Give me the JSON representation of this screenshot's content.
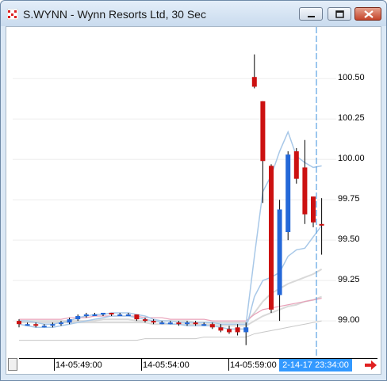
{
  "window": {
    "title": "S.WYNN - Wynn Resorts Ltd, 30 Sec",
    "minimize_icon": "minimize-icon",
    "maximize_icon": "maximize-icon",
    "close_icon": "close-icon"
  },
  "chart_data": {
    "type": "candlestick",
    "title": "S.WYNN - Wynn Resorts Ltd, 30 Sec",
    "price_ticks": [
      "100.50",
      "100.25",
      "100.00",
      "99.75",
      "99.50",
      "99.25",
      "99.00"
    ],
    "price_range": [
      98.78,
      100.82
    ],
    "time_ticks": [
      "14-05:49:00",
      "14-05:54:00",
      "14-05:59:00"
    ],
    "cursor_time": "2-14-17 23:34:00",
    "colors": {
      "up": "#2468d8",
      "down": "#cc1111",
      "ma_blue": "#a8c8e8",
      "ma_gray": "#d9d9d9",
      "ma_pink": "#e8a0b8",
      "cursor": "#3a8fdc"
    },
    "candles": [
      {
        "o": 99.0,
        "h": 99.01,
        "l": 98.96,
        "c": 98.98
      },
      {
        "o": 98.98,
        "h": 98.99,
        "l": 98.97,
        "c": 98.98
      },
      {
        "o": 98.98,
        "h": 98.99,
        "l": 98.96,
        "c": 98.97
      },
      {
        "o": 98.97,
        "h": 98.98,
        "l": 98.96,
        "c": 98.97
      },
      {
        "o": 98.97,
        "h": 98.99,
        "l": 98.96,
        "c": 98.98
      },
      {
        "o": 98.98,
        "h": 99.0,
        "l": 98.97,
        "c": 98.99
      },
      {
        "o": 98.99,
        "h": 99.02,
        "l": 98.98,
        "c": 99.01
      },
      {
        "o": 99.01,
        "h": 99.04,
        "l": 99.0,
        "c": 99.03
      },
      {
        "o": 99.03,
        "h": 99.05,
        "l": 99.02,
        "c": 99.04
      },
      {
        "o": 99.04,
        "h": 99.05,
        "l": 99.03,
        "c": 99.04
      },
      {
        "o": 99.04,
        "h": 99.05,
        "l": 99.03,
        "c": 99.05
      },
      {
        "o": 99.05,
        "h": 99.05,
        "l": 99.03,
        "c": 99.04
      },
      {
        "o": 99.04,
        "h": 99.05,
        "l": 99.03,
        "c": 99.04
      },
      {
        "o": 99.04,
        "h": 99.05,
        "l": 99.03,
        "c": 99.04
      },
      {
        "o": 99.04,
        "h": 99.04,
        "l": 99.0,
        "c": 99.01
      },
      {
        "o": 99.01,
        "h": 99.02,
        "l": 98.99,
        "c": 99.0
      },
      {
        "o": 99.0,
        "h": 99.01,
        "l": 98.98,
        "c": 98.99
      },
      {
        "o": 98.99,
        "h": 99.0,
        "l": 98.98,
        "c": 98.99
      },
      {
        "o": 98.99,
        "h": 99.0,
        "l": 98.98,
        "c": 98.99
      },
      {
        "o": 98.99,
        "h": 99.0,
        "l": 98.97,
        "c": 98.98
      },
      {
        "o": 98.98,
        "h": 99.0,
        "l": 98.97,
        "c": 98.99
      },
      {
        "o": 98.99,
        "h": 99.0,
        "l": 98.97,
        "c": 98.98
      },
      {
        "o": 98.98,
        "h": 98.99,
        "l": 98.97,
        "c": 98.98
      },
      {
        "o": 98.98,
        "h": 98.99,
        "l": 98.95,
        "c": 98.96
      },
      {
        "o": 98.96,
        "h": 98.98,
        "l": 98.93,
        "c": 98.94
      },
      {
        "o": 98.95,
        "h": 98.97,
        "l": 98.92,
        "c": 98.93
      },
      {
        "o": 98.96,
        "h": 98.98,
        "l": 98.91,
        "c": 98.93
      },
      {
        "o": 98.93,
        "h": 98.99,
        "l": 98.85,
        "c": 98.96
      },
      {
        "o": 100.51,
        "h": 100.65,
        "l": 100.44,
        "c": 100.45
      },
      {
        "o": 100.36,
        "h": 100.36,
        "l": 99.73,
        "c": 99.99
      },
      {
        "o": 99.96,
        "h": 99.97,
        "l": 99.05,
        "c": 99.07
      },
      {
        "o": 99.16,
        "h": 99.75,
        "l": 99.0,
        "c": 99.69
      },
      {
        "o": 99.55,
        "h": 100.05,
        "l": 99.5,
        "c": 100.03
      },
      {
        "o": 100.05,
        "h": 100.07,
        "l": 99.85,
        "c": 99.88
      },
      {
        "o": 99.95,
        "h": 100.12,
        "l": 99.6,
        "c": 99.66
      },
      {
        "o": 99.77,
        "h": 99.77,
        "l": 99.58,
        "c": 99.61
      },
      {
        "o": 99.6,
        "h": 99.76,
        "l": 99.41,
        "c": 99.59
      }
    ],
    "ma_blue_upper": [
      99.0,
      99.0,
      98.99,
      98.98,
      98.98,
      98.99,
      99.0,
      99.02,
      99.03,
      99.04,
      99.04,
      99.05,
      99.05,
      99.05,
      99.04,
      99.03,
      99.01,
      99.0,
      99.0,
      98.99,
      98.99,
      98.99,
      98.99,
      98.99,
      98.98,
      98.98,
      98.98,
      98.98,
      99.4,
      99.8,
      99.9,
      100.05,
      100.17,
      100.02,
      99.98,
      99.95,
      99.96
    ],
    "ma_blue_lower": [
      98.98,
      98.97,
      98.96,
      98.96,
      98.96,
      98.97,
      98.98,
      98.99,
      99.0,
      99.01,
      99.02,
      99.03,
      99.03,
      99.03,
      99.02,
      99.01,
      99.0,
      98.99,
      98.98,
      98.98,
      98.97,
      98.97,
      98.97,
      98.97,
      98.96,
      98.95,
      98.95,
      98.95,
      99.15,
      99.25,
      99.27,
      99.3,
      99.4,
      99.44,
      99.45,
      99.52,
      99.59
    ],
    "ma_gray_upper": [
      99.0,
      99.0,
      99.0,
      99.0,
      99.0,
      99.0,
      99.0,
      99.0,
      99.0,
      99.0,
      99.01,
      99.01,
      99.01,
      99.01,
      99.0,
      99.0,
      99.0,
      99.0,
      99.0,
      99.0,
      99.0,
      98.99,
      98.99,
      98.99,
      98.99,
      98.99,
      98.99,
      98.99,
      99.05,
      99.12,
      99.17,
      99.2,
      99.23,
      99.25,
      99.27,
      99.29,
      99.32
    ],
    "ma_gray_lower": [
      98.99,
      98.99,
      98.99,
      98.99,
      98.99,
      98.99,
      98.99,
      98.99,
      98.99,
      98.99,
      98.99,
      98.99,
      98.99,
      98.99,
      98.99,
      98.99,
      98.98,
      98.98,
      98.98,
      98.98,
      98.98,
      98.98,
      98.98,
      98.98,
      98.97,
      98.97,
      98.97,
      98.97,
      99.0,
      99.03,
      99.05,
      99.07,
      99.09,
      99.1,
      99.12,
      99.13,
      99.15
    ],
    "ma_long": [
      98.88,
      98.88,
      98.88,
      98.88,
      98.88,
      98.88,
      98.88,
      98.88,
      98.88,
      98.88,
      98.88,
      98.88,
      98.88,
      98.88,
      98.88,
      98.89,
      98.89,
      98.89,
      98.89,
      98.89,
      98.89,
      98.89,
      98.9,
      98.9,
      98.9,
      98.9,
      98.9,
      98.9,
      98.92,
      98.93,
      98.94,
      98.95,
      98.96,
      98.97,
      98.98,
      98.99,
      99.0
    ],
    "ma_pink": [
      99.01,
      99.01,
      99.01,
      99.01,
      99.01,
      99.01,
      99.02,
      99.02,
      99.02,
      99.03,
      99.03,
      99.03,
      99.03,
      99.03,
      99.03,
      99.02,
      99.02,
      99.02,
      99.01,
      99.01,
      99.01,
      99.01,
      99.01,
      99.0,
      99.0,
      99.0,
      99.0,
      99.0,
      99.04,
      99.07,
      99.08,
      99.09,
      99.1,
      99.11,
      99.12,
      99.13,
      99.14
    ]
  }
}
